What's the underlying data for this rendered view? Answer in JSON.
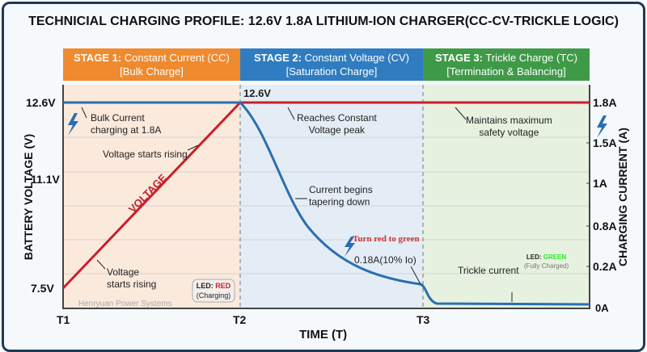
{
  "title": "TECHNICIAL CHARGING PROFILE: 12.6V 1.8A LITHIUM-ION CHARGER(CC-CV-TRICKLE LOGIC)",
  "stages": [
    {
      "head": "STAGE 1:",
      "name": "Constant Current (CC)",
      "sub": "[Bulk Charge]",
      "color": "#ef8a2e"
    },
    {
      "head": "STAGE 2:",
      "name": "Constant Voltage (CV)",
      "sub": "[Saturation Charge]",
      "color": "#2f7cc0"
    },
    {
      "head": "STAGE 3:",
      "name": "Trickle Charge (TC)",
      "sub": "[Termination & Balancing]",
      "color": "#3f9a47"
    }
  ],
  "left_axis": {
    "title": "BATTERY VOLTAGE (V)",
    "ticks": [
      "12.6V",
      "11.1V",
      "7.5V"
    ]
  },
  "right_axis": {
    "title": "CHARGING CURRENT (A)",
    "ticks": [
      "1.8A",
      "1.5A",
      "1A",
      "0.8A",
      "0.2A",
      "0A"
    ]
  },
  "x_axis": {
    "title": "TIME (T)",
    "ticks": [
      "T1",
      "T2",
      "T3"
    ]
  },
  "annotations": {
    "peak": "12.6V",
    "bulk_current": "Bulk Current\ncharging at 1.8A",
    "voltage_rising_1": "Voltage starts rising",
    "voltage_label": "VOLTAGE",
    "voltage_rising_2": "Voltage\nstarts rising",
    "reaches_cv": "Reaches Constant\nVoltage peak",
    "tapering": "Current begins\ntapering down",
    "turn_green": "Turn red to green",
    "cutoff": "0.18A(10% Io)",
    "maintains": "Maintains maximum\nsafety voltage",
    "trickle": "Trickle current",
    "watermark": "Henryuan Power Systems"
  },
  "led_red": {
    "prefix": "LED:",
    "color_word": "RED",
    "state": "(Charging)"
  },
  "led_green": {
    "prefix": "LED:",
    "color_word": "GREEN",
    "state": "(Fully Charged)"
  },
  "colors": {
    "voltage": "#c8202a",
    "current": "#2a6eb0",
    "stage1_bg": "#fbe9dc",
    "stage2_bg": "#e4edf6",
    "stage3_bg": "#e6f1df"
  }
}
